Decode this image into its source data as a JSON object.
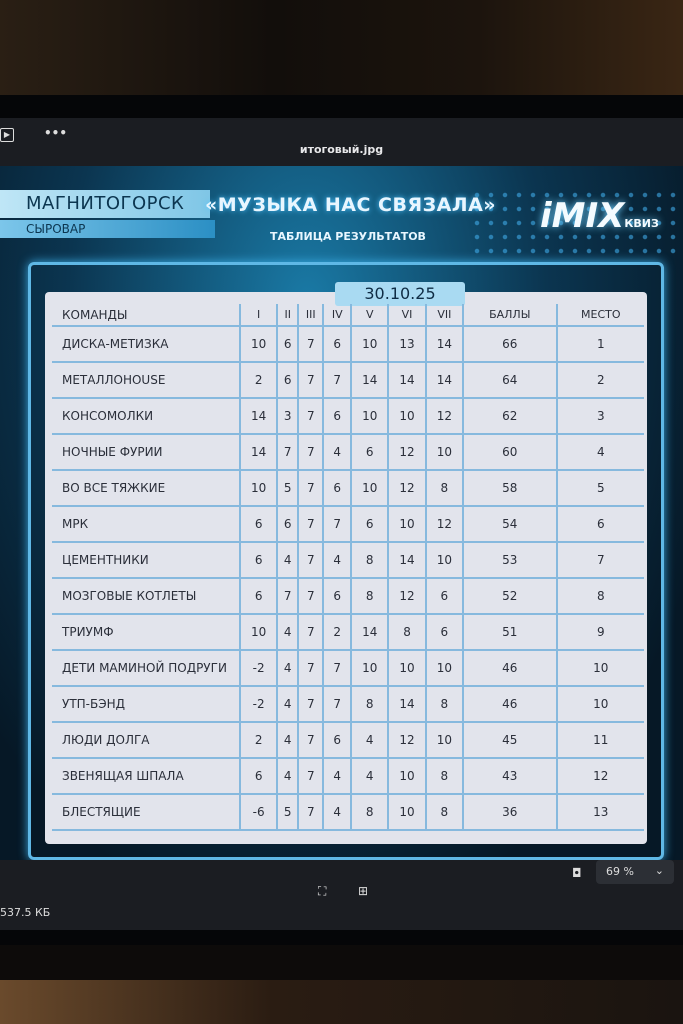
{
  "window": {
    "title": "итоговый.jpg",
    "file_size": "537.5 КБ",
    "zoom": "69 %"
  },
  "poster": {
    "city": "МАГНИТОГОРСК",
    "venue": "СЫРОВАР",
    "title": "«МУЗЫКА НАС СВЯЗАЛА»",
    "subtitle": "ТАБЛИЦА РЕЗУЛЬТАТОВ",
    "logo": "iMIX",
    "logo_sub": "КВИЗ",
    "date": "30.10.25"
  },
  "table": {
    "headers": [
      "КОМАНДЫ",
      "I",
      "II",
      "III",
      "IV",
      "V",
      "VI",
      "VII",
      "БАЛЛЫ",
      "МЕСТО"
    ],
    "rows": [
      [
        "ДИСКА-МЕТИЗКА",
        "10",
        "6",
        "7",
        "6",
        "10",
        "13",
        "14",
        "66",
        "1"
      ],
      [
        "МЕТАЛЛОHOUSE",
        "2",
        "6",
        "7",
        "7",
        "14",
        "14",
        "14",
        "64",
        "2"
      ],
      [
        "КОНСОМОЛКИ",
        "14",
        "3",
        "7",
        "6",
        "10",
        "10",
        "12",
        "62",
        "3"
      ],
      [
        "НОЧНЫЕ ФУРИИ",
        "14",
        "7",
        "7",
        "4",
        "6",
        "12",
        "10",
        "60",
        "4"
      ],
      [
        "ВО ВСЕ ТЯЖКИЕ",
        "10",
        "5",
        "7",
        "6",
        "10",
        "12",
        "8",
        "58",
        "5"
      ],
      [
        "МРК",
        "6",
        "6",
        "7",
        "7",
        "6",
        "10",
        "12",
        "54",
        "6"
      ],
      [
        "ЦЕМЕНТНИКИ",
        "6",
        "4",
        "7",
        "4",
        "8",
        "14",
        "10",
        "53",
        "7"
      ],
      [
        "МОЗГОВЫЕ КОТЛЕТЫ",
        "6",
        "7",
        "7",
        "6",
        "8",
        "12",
        "6",
        "52",
        "8"
      ],
      [
        "ТРИУМФ",
        "10",
        "4",
        "7",
        "2",
        "14",
        "8",
        "6",
        "51",
        "9"
      ],
      [
        "ДЕТИ МАМИНОЙ ПОДРУГИ",
        "-2",
        "4",
        "7",
        "7",
        "10",
        "10",
        "10",
        "46",
        "10"
      ],
      [
        "УТП-БЭНД",
        "-2",
        "4",
        "7",
        "7",
        "8",
        "14",
        "8",
        "46",
        "10"
      ],
      [
        "ЛЮДИ ДОЛГА",
        "2",
        "4",
        "7",
        "6",
        "4",
        "12",
        "10",
        "45",
        "11"
      ],
      [
        "ЗВЕНЯЩАЯ ШПАЛА",
        "6",
        "4",
        "7",
        "4",
        "4",
        "10",
        "8",
        "43",
        "12"
      ],
      [
        "БЛЕСТЯЩИЕ",
        "-6",
        "5",
        "7",
        "4",
        "8",
        "10",
        "8",
        "36",
        "13"
      ]
    ]
  }
}
